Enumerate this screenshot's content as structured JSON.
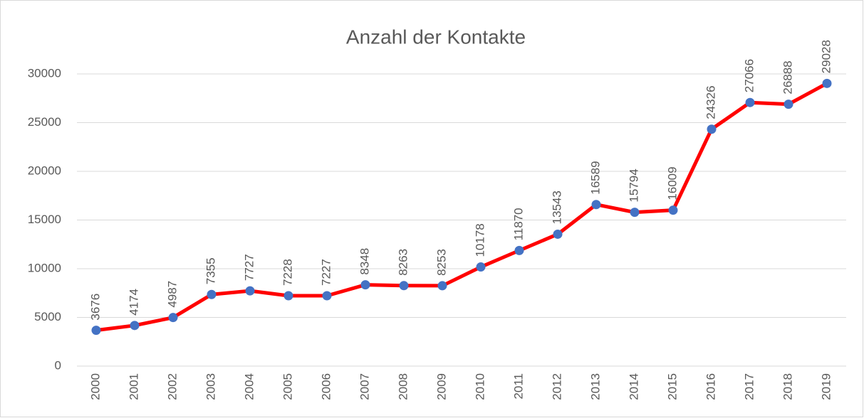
{
  "chart_data": {
    "type": "line",
    "title": "Anzahl der Kontakte",
    "categories": [
      "2000",
      "2001",
      "2002",
      "2003",
      "2004",
      "2005",
      "2006",
      "2007",
      "2008",
      "2009",
      "2010",
      "2011",
      "2012",
      "2013",
      "2014",
      "2015",
      "2016",
      "2017",
      "2018",
      "2019"
    ],
    "values": [
      3676,
      4174,
      4987,
      7355,
      7727,
      7228,
      7227,
      8348,
      8263,
      8253,
      10178,
      11870,
      13543,
      16589,
      15794,
      16009,
      24326,
      27066,
      26888,
      29028
    ],
    "line_color": "#ff0000",
    "marker_color": "#4472c4",
    "ylim": [
      0,
      30000
    ],
    "yticks": [
      0,
      5000,
      10000,
      15000,
      20000,
      25000,
      30000
    ],
    "grid": true
  }
}
